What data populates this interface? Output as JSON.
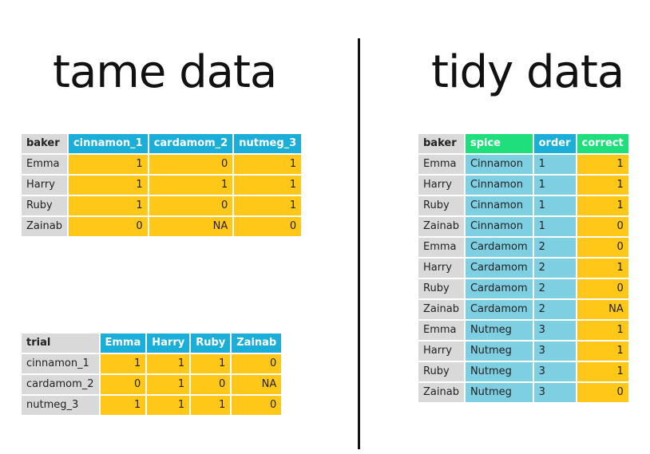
{
  "colors": {
    "gray": "#d9d9d9",
    "yellow": "#ffc819",
    "blue": "#1aaed8",
    "lightblue": "#7fcfe3",
    "green": "#1fdf7d"
  },
  "left": {
    "title": "tame data",
    "table1": {
      "headers": [
        "baker",
        "cinnamon_1",
        "cardamom_2",
        "nutmeg_3"
      ],
      "rows": [
        [
          "Emma",
          "1",
          "0",
          "1"
        ],
        [
          "Harry",
          "1",
          "1",
          "1"
        ],
        [
          "Ruby",
          "1",
          "0",
          "1"
        ],
        [
          "Zainab",
          "0",
          "NA",
          "0"
        ]
      ]
    },
    "table2": {
      "headers": [
        "trial",
        "Emma",
        "Harry",
        "Ruby",
        "Zainab"
      ],
      "rows": [
        [
          "cinnamon_1",
          "1",
          "1",
          "1",
          "0"
        ],
        [
          "cardamom_2",
          "0",
          "1",
          "0",
          "NA"
        ],
        [
          "nutmeg_3",
          "1",
          "1",
          "1",
          "0"
        ]
      ]
    }
  },
  "right": {
    "title": "tidy data",
    "table": {
      "headers": [
        "baker",
        "spice",
        "order",
        "correct"
      ],
      "rows": [
        [
          "Emma",
          "Cinnamon",
          "1",
          "1"
        ],
        [
          "Harry",
          "Cinnamon",
          "1",
          "1"
        ],
        [
          "Ruby",
          "Cinnamon",
          "1",
          "1"
        ],
        [
          "Zainab",
          "Cinnamon",
          "1",
          "0"
        ],
        [
          "Emma",
          "Cardamom",
          "2",
          "0"
        ],
        [
          "Harry",
          "Cardamom",
          "2",
          "1"
        ],
        [
          "Ruby",
          "Cardamom",
          "2",
          "0"
        ],
        [
          "Zainab",
          "Cardamom",
          "2",
          "NA"
        ],
        [
          "Emma",
          "Nutmeg",
          "3",
          "1"
        ],
        [
          "Harry",
          "Nutmeg",
          "3",
          "1"
        ],
        [
          "Ruby",
          "Nutmeg",
          "3",
          "1"
        ],
        [
          "Zainab",
          "Nutmeg",
          "3",
          "0"
        ]
      ]
    }
  }
}
